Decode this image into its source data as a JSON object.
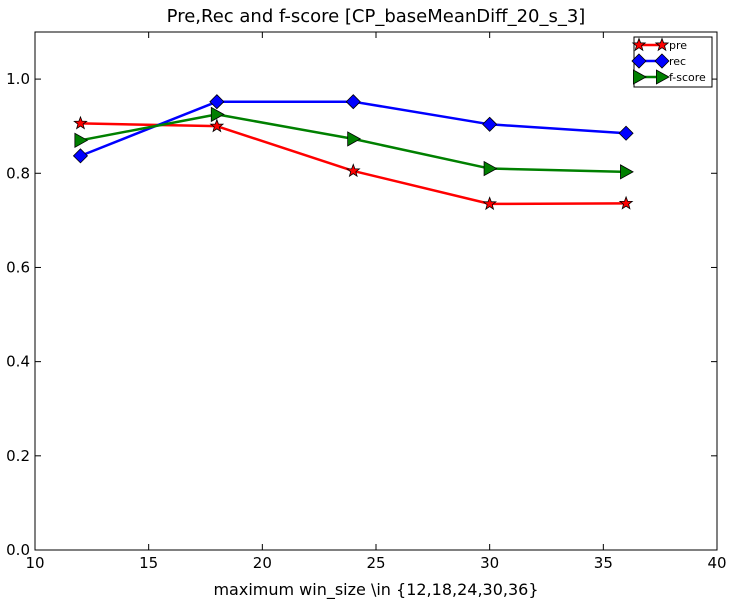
{
  "chart_data": {
    "type": "line",
    "title": "Pre,Rec and f-score [CP_baseMeanDiff_20_s_3]",
    "xlabel": "maximum win_size \\in {12,18,24,30,36}",
    "ylabel": "",
    "xlim": [
      10,
      40
    ],
    "ylim": [
      0.0,
      1.1
    ],
    "x_ticks": [
      10,
      15,
      20,
      25,
      30,
      35,
      40
    ],
    "y_ticks": [
      0.0,
      0.2,
      0.4,
      0.6,
      0.8,
      1.0
    ],
    "x_tick_labels": [
      "10",
      "15",
      "20",
      "25",
      "30",
      "35",
      "40"
    ],
    "y_tick_labels": [
      "0.0",
      "0.2",
      "0.4",
      "0.6",
      "0.8",
      "1.0"
    ],
    "x": [
      12,
      18,
      24,
      30,
      36
    ],
    "grid": false,
    "legend_position": "top-right",
    "series": [
      {
        "name": "pre",
        "values": [
          0.906,
          0.9,
          0.805,
          0.735,
          0.736
        ],
        "color": "#ff0000",
        "marker": "star"
      },
      {
        "name": "rec",
        "values": [
          0.837,
          0.952,
          0.952,
          0.904,
          0.885
        ],
        "color": "#0000ff",
        "marker": "diamond"
      },
      {
        "name": "f-score",
        "values": [
          0.87,
          0.925,
          0.873,
          0.81,
          0.803
        ],
        "color": "#008000",
        "marker": "triangle-right"
      }
    ]
  }
}
